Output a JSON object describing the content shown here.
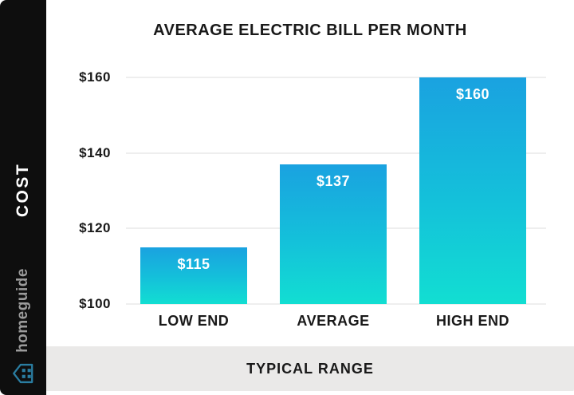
{
  "sidebar": {
    "cost_label": "COST",
    "brand": "homeguide"
  },
  "footer": {
    "label": "TYPICAL RANGE"
  },
  "colors": {
    "sidebar_bg": "#0e0e0e",
    "bar_gradient_top": "#1aa2e0",
    "bar_gradient_mid": "#14c1da",
    "bar_gradient_bottom": "#12ded2",
    "footer_bg": "#eae9e8",
    "gridline": "#eeeeee",
    "text_dark": "#191919",
    "brand_gray": "#9b9b9b",
    "house_icon_teal": "#2a7da1"
  },
  "chart_data": {
    "type": "bar",
    "title": "AVERAGE ELECTRIC BILL PER MONTH",
    "categories": [
      "LOW END",
      "AVERAGE",
      "HIGH END"
    ],
    "values": [
      115,
      137,
      160
    ],
    "value_labels": [
      "$115",
      "$137",
      "$160"
    ],
    "y_ticks": [
      "$160",
      "$140",
      "$120",
      "$100"
    ],
    "y_tick_values": [
      160,
      140,
      120,
      100
    ],
    "ylim": [
      100,
      160
    ],
    "xlabel": "TYPICAL RANGE",
    "ylabel": "COST",
    "grid": true,
    "legend": "none"
  }
}
